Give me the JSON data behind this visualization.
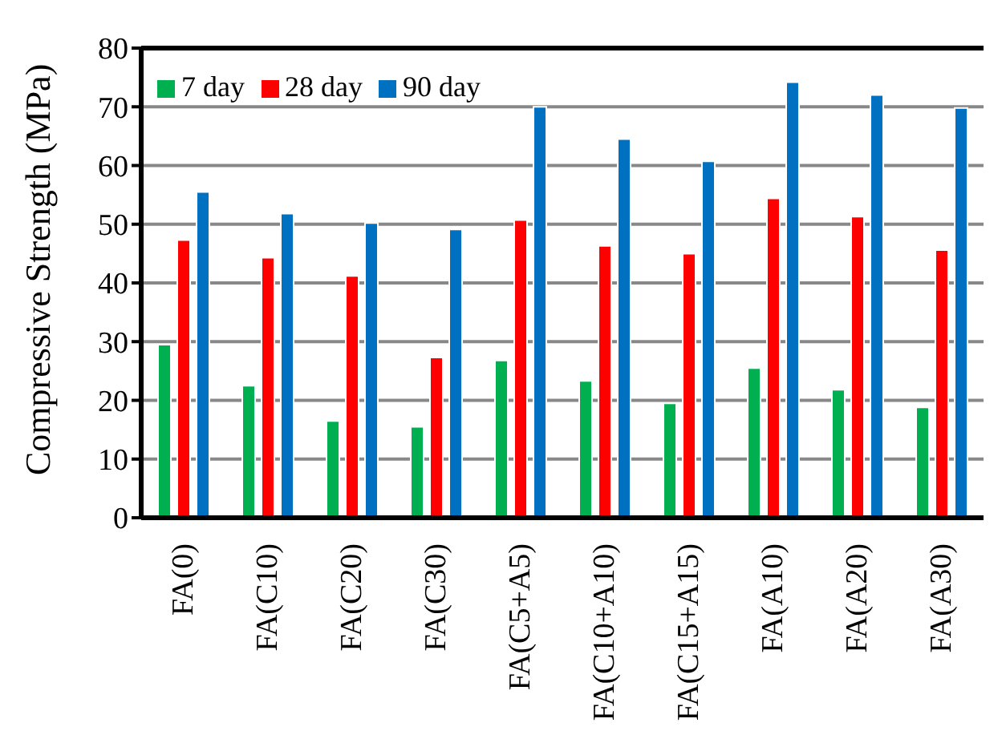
{
  "chart_data": {
    "type": "bar",
    "ylabel": "Compressive Strength (MPa)",
    "categories": [
      "FA(0)",
      "FA(C10)",
      "FA(C20)",
      "FA(C30)",
      "FA(C5+A5)",
      "FA(C10+A10)",
      "FA(C15+A15)",
      "FA(A10)",
      "FA(A20)",
      "FA(A30)"
    ],
    "series": [
      {
        "name": "7 day",
        "color": "#00b050",
        "values": [
          29.5,
          22.5,
          16.5,
          15.5,
          26.8,
          23.3,
          19.5,
          25.5,
          21.8,
          18.8
        ]
      },
      {
        "name": "28 day",
        "color": "#ff0000",
        "values": [
          47.3,
          44.3,
          41.2,
          27.3,
          50.7,
          46.3,
          45,
          54.4,
          51.3,
          45.6
        ]
      },
      {
        "name": "90 day",
        "color": "#0070c0",
        "values": [
          55.5,
          51.8,
          50.2,
          49.1,
          70,
          64.5,
          60.7,
          74.2,
          72,
          69.8
        ]
      }
    ],
    "ylim": [
      0,
      80
    ],
    "yticks": [
      0,
      10,
      20,
      30,
      40,
      50,
      60,
      70,
      80
    ],
    "grid": "y",
    "legend": "top left"
  }
}
